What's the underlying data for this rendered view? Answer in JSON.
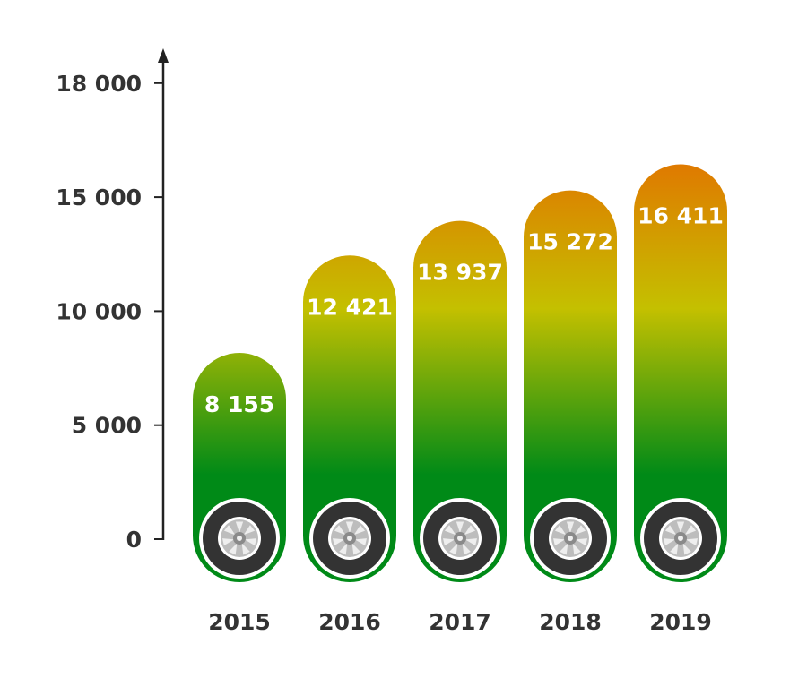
{
  "chart_data": {
    "type": "bar",
    "title": "",
    "xlabel": "",
    "ylabel": "",
    "categories": [
      "2015",
      "2016",
      "2017",
      "2018",
      "2019"
    ],
    "values": [
      8155,
      12421,
      13937,
      15272,
      16411
    ],
    "value_labels": [
      "8 155",
      "12 421",
      "13 937",
      "15 272",
      "16 411"
    ],
    "yticks": [
      0,
      5000,
      10000,
      15000,
      18000
    ],
    "ytick_labels": [
      "0",
      "5 000",
      "10 000",
      "15 000",
      "18 000"
    ],
    "ylim": [
      0,
      18000
    ],
    "grid": false,
    "legend": "none",
    "colors": {
      "top": "#e07800",
      "middle": "#c4c000",
      "bottom": "#008a17",
      "text": "#333333",
      "label": "#ffffff",
      "tire": "#333333"
    }
  }
}
